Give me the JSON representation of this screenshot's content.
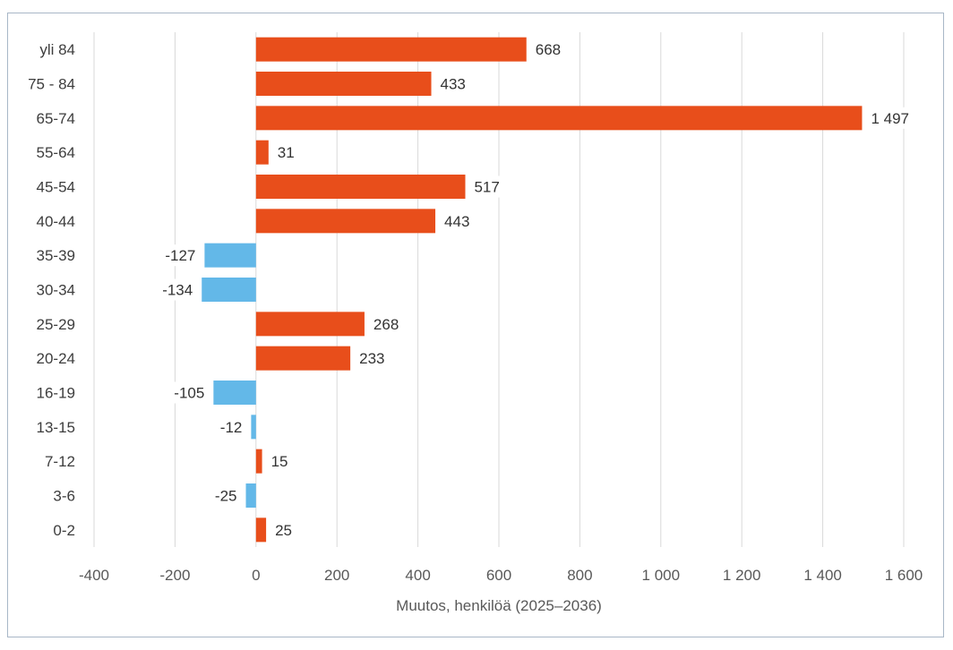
{
  "chart_data": {
    "type": "bar",
    "orientation": "horizontal",
    "categories": [
      "yli 84",
      "75 - 84",
      "65-74",
      "55-64",
      "45-54",
      "40-44",
      "35-39",
      "30-34",
      "25-29",
      "20-24",
      "16-19",
      "13-15",
      "7-12",
      "3-6",
      "0-2"
    ],
    "values": [
      668,
      433,
      1497,
      31,
      517,
      443,
      -127,
      -134,
      268,
      233,
      -105,
      -12,
      15,
      -25,
      25
    ],
    "value_labels": [
      "668",
      "433",
      "1 497",
      "31",
      "517",
      "443",
      "-127",
      "-134",
      "268",
      "233",
      "-105",
      "-12",
      "15",
      "-25",
      "25"
    ],
    "xlabel": "Muutos, henkilöä (2025–2036)",
    "ylabel": "",
    "xlim": [
      -400,
      1600
    ],
    "xticks": [
      -400,
      -200,
      0,
      200,
      400,
      600,
      800,
      1000,
      1200,
      1400,
      1600
    ],
    "xtick_labels": [
      "-400",
      "-200",
      "0",
      "200",
      "400",
      "600",
      "800",
      "1 000",
      "1 200",
      "1 400",
      "1 600"
    ],
    "grid": "vertical",
    "colors": {
      "positive": "#e84e1b",
      "negative": "#63b8e8",
      "grid": "#d9d9d9"
    }
  }
}
